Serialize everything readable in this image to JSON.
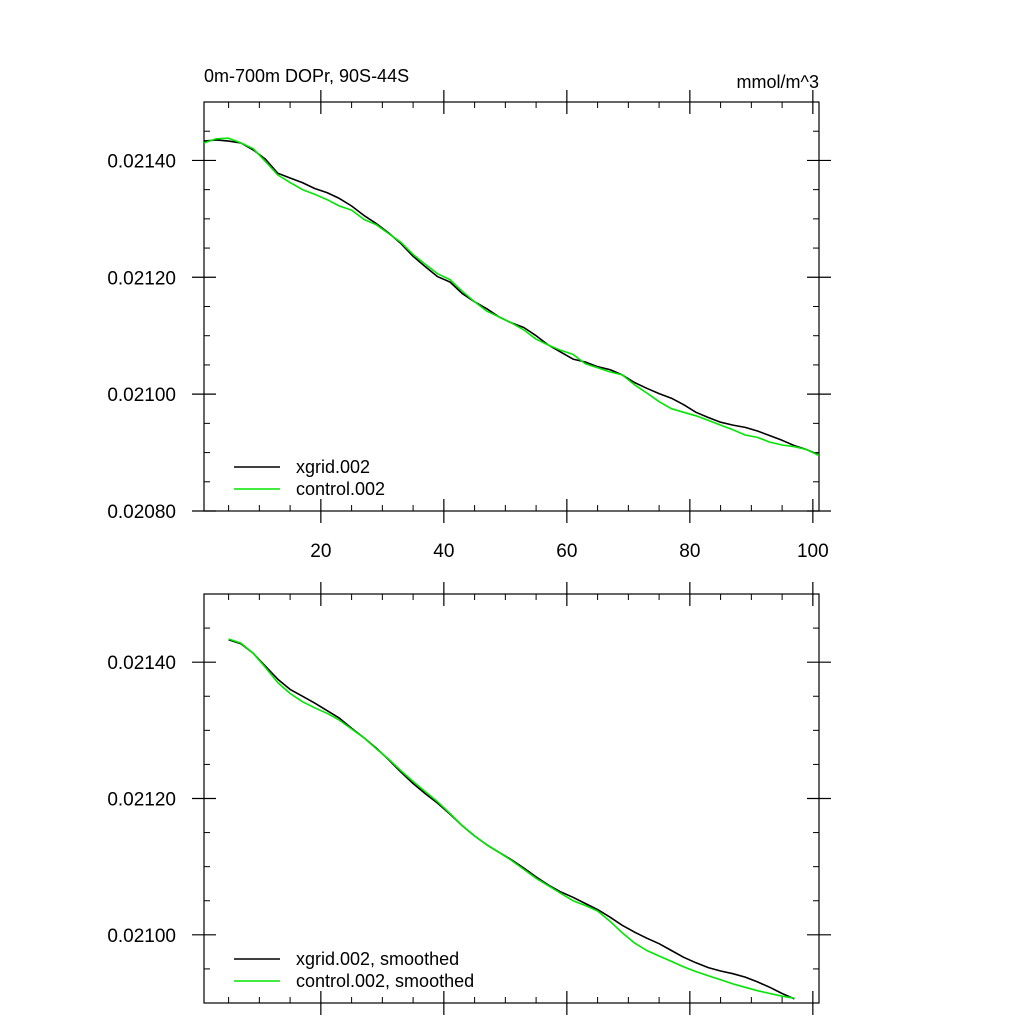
{
  "colors": {
    "xgrid": "#000000",
    "control": "#00e600",
    "frame": "#000000",
    "background": "#ffffff"
  },
  "chart_data": [
    {
      "type": "line",
      "title": "0m-700m DOPr, 90S-44S",
      "units": "mmol/m^3",
      "xlim": [
        1,
        101
      ],
      "ylim": [
        0.0208,
        0.0215
      ],
      "x_ticks": [
        20,
        40,
        60,
        80,
        100
      ],
      "x_tick_labels": [
        "20",
        "40",
        "60",
        "80",
        "100"
      ],
      "y_ticks": [
        0.0208,
        0.021,
        0.0212,
        0.0214
      ],
      "y_tick_labels": [
        "0.02080",
        "0.02100",
        "0.02120",
        "0.02140"
      ],
      "legend_position": "bottom-left",
      "series": [
        {
          "name": "xgrid.002",
          "color_key": "xgrid",
          "x": [
            1,
            3,
            5,
            7,
            9,
            11,
            13,
            15,
            17,
            19,
            21,
            23,
            25,
            27,
            29,
            31,
            33,
            35,
            37,
            39,
            41,
            43,
            45,
            47,
            49,
            51,
            53,
            55,
            57,
            59,
            61,
            63,
            65,
            67,
            69,
            71,
            73,
            75,
            77,
            79,
            81,
            83,
            85,
            87,
            89,
            91,
            93,
            95,
            97,
            99,
            101
          ],
          "y": [
            0.021433,
            0.021435,
            0.021433,
            0.02143,
            0.021418,
            0.021402,
            0.021378,
            0.02137,
            0.021362,
            0.021352,
            0.021345,
            0.021335,
            0.021322,
            0.021306,
            0.021292,
            0.021276,
            0.021258,
            0.021236,
            0.021218,
            0.021201,
            0.021192,
            0.021172,
            0.021158,
            0.021146,
            0.021132,
            0.021122,
            0.021114,
            0.0211,
            0.021084,
            0.021072,
            0.02106,
            0.021055,
            0.021047,
            0.021042,
            0.021033,
            0.02102,
            0.02101,
            0.021001,
            0.020993,
            0.020982,
            0.020969,
            0.02096,
            0.020952,
            0.020947,
            0.020943,
            0.020937,
            0.020929,
            0.020921,
            0.020912,
            0.020905,
            0.020896
          ]
        },
        {
          "name": "control.002",
          "color_key": "control",
          "x": [
            1,
            3,
            5,
            7,
            9,
            11,
            13,
            15,
            17,
            19,
            21,
            23,
            25,
            27,
            29,
            31,
            33,
            35,
            37,
            39,
            41,
            43,
            45,
            47,
            49,
            51,
            53,
            55,
            57,
            59,
            61,
            63,
            65,
            67,
            69,
            71,
            73,
            75,
            77,
            79,
            81,
            83,
            85,
            87,
            89,
            91,
            93,
            95,
            97,
            99,
            101
          ],
          "y": [
            0.02143,
            0.021437,
            0.021438,
            0.02143,
            0.02142,
            0.021398,
            0.021375,
            0.021362,
            0.02135,
            0.021342,
            0.021333,
            0.021322,
            0.021315,
            0.021299,
            0.02129,
            0.021275,
            0.02126,
            0.021239,
            0.021222,
            0.021206,
            0.021196,
            0.021176,
            0.021158,
            0.021142,
            0.021132,
            0.021122,
            0.02111,
            0.021094,
            0.021084,
            0.021075,
            0.021068,
            0.021052,
            0.021045,
            0.021038,
            0.021033,
            0.021016,
            0.021002,
            0.020987,
            0.020975,
            0.020969,
            0.020963,
            0.020955,
            0.020947,
            0.020939,
            0.02093,
            0.020926,
            0.020918,
            0.020913,
            0.02091,
            0.020905,
            0.020895
          ]
        }
      ]
    },
    {
      "type": "line",
      "xlim": [
        1,
        101
      ],
      "ylim": [
        0.0209,
        0.0215
      ],
      "x_ticks": [
        20,
        40,
        60,
        80,
        100
      ],
      "y_ticks": [
        0.021,
        0.0212,
        0.0214
      ],
      "y_tick_labels": [
        "0.02100",
        "0.02120",
        "0.02140"
      ],
      "legend_position": "bottom-left",
      "series": [
        {
          "name": "xgrid.002, smoothed",
          "color_key": "xgrid",
          "x": [
            5,
            7,
            9,
            11,
            13,
            15,
            17,
            19,
            21,
            23,
            25,
            27,
            29,
            31,
            33,
            35,
            37,
            39,
            41,
            43,
            45,
            47,
            49,
            51,
            53,
            55,
            57,
            59,
            61,
            63,
            65,
            67,
            69,
            71,
            73,
            75,
            77,
            79,
            81,
            83,
            85,
            87,
            89,
            91,
            93,
            95,
            97
          ],
          "y": [
            0.021433,
            0.021427,
            0.021413,
            0.021394,
            0.021375,
            0.02136,
            0.02135,
            0.02134,
            0.021329,
            0.021318,
            0.021303,
            0.021289,
            0.021274,
            0.021257,
            0.021239,
            0.021222,
            0.021207,
            0.021193,
            0.021177,
            0.02116,
            0.021145,
            0.021132,
            0.021121,
            0.02111,
            0.021098,
            0.021085,
            0.021073,
            0.021063,
            0.021055,
            0.021046,
            0.021037,
            0.021026,
            0.021014,
            0.021004,
            0.020995,
            0.020987,
            0.020977,
            0.020967,
            0.020959,
            0.020952,
            0.020947,
            0.020943,
            0.020938,
            0.020931,
            0.020923,
            0.020914,
            0.020906
          ]
        },
        {
          "name": "control.002, smoothed",
          "color_key": "control",
          "x": [
            5,
            7,
            9,
            11,
            13,
            15,
            17,
            19,
            21,
            23,
            25,
            27,
            29,
            31,
            33,
            35,
            37,
            39,
            41,
            43,
            45,
            47,
            49,
            51,
            53,
            55,
            57,
            59,
            61,
            63,
            65,
            67,
            69,
            71,
            73,
            75,
            77,
            79,
            81,
            83,
            85,
            87,
            89,
            91,
            93,
            95,
            97
          ],
          "y": [
            0.021434,
            0.021428,
            0.021413,
            0.021392,
            0.02137,
            0.021354,
            0.021342,
            0.021333,
            0.021325,
            0.021315,
            0.021302,
            0.021289,
            0.021273,
            0.021258,
            0.021241,
            0.021225,
            0.02121,
            0.021195,
            0.021178,
            0.02116,
            0.021145,
            0.021132,
            0.021121,
            0.021109,
            0.021096,
            0.021083,
            0.021072,
            0.021061,
            0.02105,
            0.021043,
            0.021035,
            0.02102,
            0.021003,
            0.020988,
            0.020977,
            0.020969,
            0.020961,
            0.020953,
            0.020946,
            0.02094,
            0.020934,
            0.020928,
            0.020923,
            0.020918,
            0.020914,
            0.02091,
            0.020907
          ]
        }
      ]
    }
  ]
}
